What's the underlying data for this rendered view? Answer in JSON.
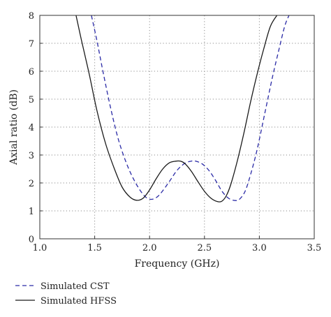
{
  "chart_data": {
    "type": "line",
    "title": "",
    "xlabel": "Frequency (GHz)",
    "ylabel": "Axial ratio (dB)",
    "xlim": [
      1.0,
      3.5
    ],
    "ylim": [
      0,
      8
    ],
    "x_ticks": [
      "1.0",
      "1.5",
      "2.0",
      "2.5",
      "3.0",
      "3.5"
    ],
    "y_ticks": [
      "0",
      "1",
      "2",
      "3",
      "4",
      "5",
      "6",
      "7",
      "8"
    ],
    "grid": true,
    "legend_position": "bottom-left",
    "series": [
      {
        "name": "Simulated CST",
        "color": "#2a2aa6",
        "style": "dashed",
        "x": [
          1.47,
          1.52,
          1.58,
          1.65,
          1.72,
          1.8,
          1.88,
          1.95,
          2.0,
          2.05,
          2.1,
          2.18,
          2.25,
          2.32,
          2.38,
          2.42,
          2.48,
          2.54,
          2.6,
          2.66,
          2.72,
          2.78,
          2.82,
          2.87,
          2.92,
          2.98,
          3.05,
          3.12,
          3.18,
          3.23,
          3.27
        ],
        "y": [
          8.0,
          7.1,
          5.9,
          4.6,
          3.5,
          2.6,
          1.95,
          1.55,
          1.42,
          1.45,
          1.62,
          2.05,
          2.45,
          2.7,
          2.78,
          2.78,
          2.68,
          2.45,
          2.1,
          1.7,
          1.45,
          1.37,
          1.42,
          1.7,
          2.3,
          3.2,
          4.5,
          5.8,
          6.8,
          7.6,
          8.0
        ]
      },
      {
        "name": "Simulated HFSS",
        "color": "#1a1a1a",
        "style": "solid",
        "x": [
          1.33,
          1.38,
          1.45,
          1.52,
          1.6,
          1.68,
          1.75,
          1.82,
          1.88,
          1.94,
          2.0,
          2.06,
          2.12,
          2.18,
          2.24,
          2.28,
          2.32,
          2.38,
          2.44,
          2.5,
          2.56,
          2.62,
          2.66,
          2.7,
          2.74,
          2.8,
          2.86,
          2.92,
          2.98,
          3.04,
          3.1,
          3.16
        ],
        "y": [
          8.0,
          7.1,
          5.9,
          4.6,
          3.4,
          2.5,
          1.85,
          1.5,
          1.38,
          1.45,
          1.75,
          2.15,
          2.5,
          2.72,
          2.78,
          2.78,
          2.7,
          2.42,
          2.05,
          1.7,
          1.45,
          1.33,
          1.35,
          1.55,
          1.95,
          2.8,
          3.8,
          4.9,
          5.9,
          6.8,
          7.6,
          8.0
        ]
      }
    ]
  }
}
